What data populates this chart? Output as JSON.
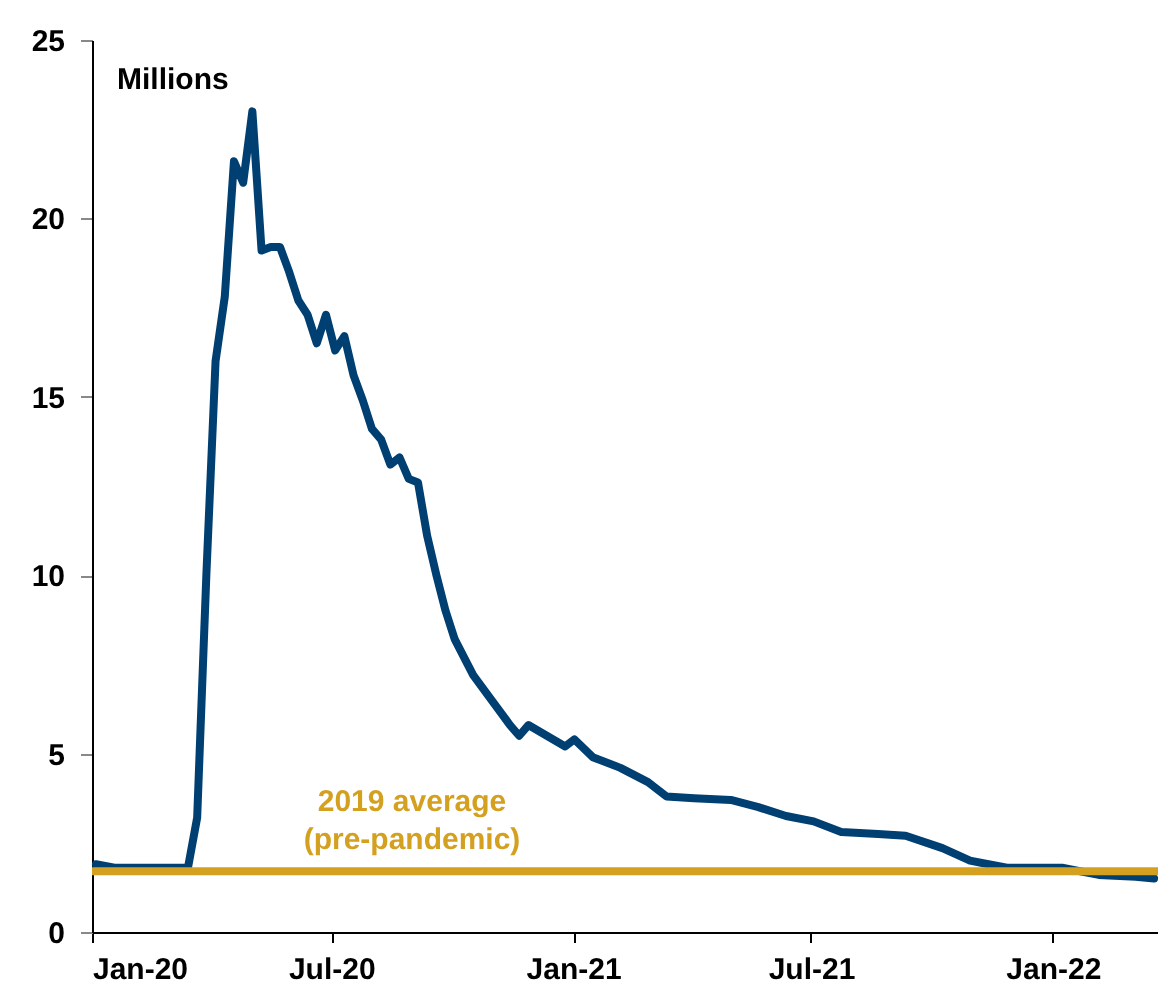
{
  "chart_data": {
    "type": "line",
    "ylabel": "Millions",
    "x": [
      "2020-01-04",
      "2020-01-18",
      "2020-02-01",
      "2020-02-15",
      "2020-02-29",
      "2020-03-14",
      "2020-03-21",
      "2020-03-28",
      "2020-04-04",
      "2020-04-11",
      "2020-04-18",
      "2020-04-25",
      "2020-05-02",
      "2020-05-09",
      "2020-05-16",
      "2020-05-23",
      "2020-05-30",
      "2020-06-06",
      "2020-06-13",
      "2020-06-20",
      "2020-06-27",
      "2020-07-04",
      "2020-07-11",
      "2020-07-18",
      "2020-07-25",
      "2020-08-01",
      "2020-08-08",
      "2020-08-15",
      "2020-08-22",
      "2020-08-29",
      "2020-09-05",
      "2020-09-12",
      "2020-09-19",
      "2020-09-26",
      "2020-10-03",
      "2020-10-17",
      "2020-10-31",
      "2020-11-14",
      "2020-11-21",
      "2020-11-28",
      "2020-12-12",
      "2020-12-26",
      "2021-01-02",
      "2021-01-16",
      "2021-02-06",
      "2021-02-27",
      "2021-03-13",
      "2021-04-03",
      "2021-05-01",
      "2021-05-22",
      "2021-06-12",
      "2021-07-03",
      "2021-07-24",
      "2021-08-21",
      "2021-09-11",
      "2021-10-09",
      "2021-10-30",
      "2021-11-13",
      "2021-11-27",
      "2022-01-08",
      "2022-02-05",
      "2022-03-05",
      "2022-03-19"
    ],
    "series": [
      {
        "color": "#003f72",
        "values": [
          1.9,
          1.8,
          1.8,
          1.8,
          1.8,
          1.8,
          3.2,
          10.0,
          16.0,
          17.8,
          21.6,
          21.0,
          23.0,
          19.1,
          19.2,
          19.2,
          18.5,
          17.7,
          17.3,
          16.5,
          17.3,
          16.3,
          16.7,
          15.6,
          14.9,
          14.1,
          13.8,
          13.1,
          13.3,
          12.7,
          12.6,
          11.1,
          10.0,
          9.0,
          8.2,
          7.2,
          6.5,
          5.8,
          5.5,
          5.8,
          5.5,
          5.2,
          5.4,
          4.9,
          4.6,
          4.2,
          3.8,
          3.75,
          3.7,
          3.5,
          3.25,
          3.1,
          2.8,
          2.75,
          2.7,
          2.35,
          2.0,
          1.9,
          1.8,
          1.8,
          1.6,
          1.55,
          1.5
        ]
      }
    ],
    "xlim": [
      "2020-01-01",
      "2022-03-22"
    ],
    "xticks": [
      {
        "value": "2020-01-01",
        "label": "Jan-20"
      },
      {
        "value": "2020-07-01",
        "label": "Jul-20"
      },
      {
        "value": "2021-01-01",
        "label": "Jan-21"
      },
      {
        "value": "2021-07-01",
        "label": "Jul-21"
      },
      {
        "value": "2022-01-01",
        "label": "Jan-22"
      }
    ],
    "ylim": [
      0,
      25
    ],
    "yticks": [
      0,
      5,
      10,
      15,
      20,
      25
    ],
    "ref_lines": [
      {
        "axis": "y",
        "value": 1.7,
        "label": "2019 average\n(pre-pandemic)",
        "color": "#d4a020"
      }
    ]
  }
}
